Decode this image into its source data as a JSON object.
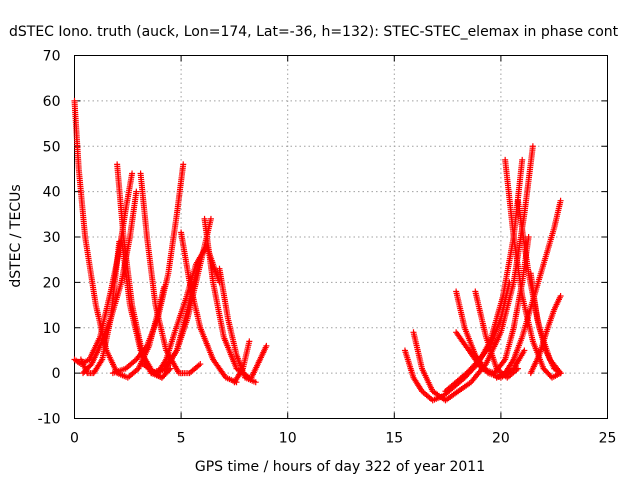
{
  "chart_data": {
    "type": "scatter",
    "title": "dSTEC Iono. truth (auck, Lon=174, Lat=-36, h=132): STEC-STEC_elemax in phase cont",
    "xlabel": "GPS time / hours of day 322 of year 2011",
    "ylabel": "dSTEC  / TECUs",
    "xlim": [
      0,
      25
    ],
    "ylim": [
      -10,
      70
    ],
    "xticks": [
      0,
      5,
      10,
      15,
      20,
      25
    ],
    "yticks": [
      -10,
      0,
      10,
      20,
      30,
      40,
      50,
      60,
      70
    ],
    "grid": true,
    "marker": "+",
    "color": "#ff0000",
    "arcs": [
      {
        "x": [
          0.0,
          0.2,
          0.5,
          1.0,
          1.5,
          2.0,
          2.5,
          3.0,
          3.5,
          4.0,
          4.2
        ],
        "y": [
          60,
          45,
          30,
          15,
          5,
          0,
          -1,
          1,
          6,
          15,
          19
        ]
      },
      {
        "x": [
          0.0,
          0.3,
          0.7,
          1.2,
          1.7,
          2.1,
          2.4,
          2.7
        ],
        "y": [
          3,
          2,
          3,
          8,
          18,
          27,
          36,
          44
        ]
      },
      {
        "x": [
          0.3,
          0.6,
          0.9,
          1.3,
          1.7,
          2.1
        ],
        "y": [
          3,
          0,
          0,
          3,
          12,
          29
        ]
      },
      {
        "x": [
          0.4,
          0.8,
          1.2,
          1.7,
          2.2,
          2.6,
          2.9
        ],
        "y": [
          0,
          2,
          6,
          12,
          20,
          30,
          40
        ]
      },
      {
        "x": [
          2.0,
          2.3,
          2.7,
          3.2,
          3.7,
          4.1
        ],
        "y": [
          46,
          30,
          15,
          4,
          0,
          -1
        ]
      },
      {
        "x": [
          2.2,
          2.6,
          3.1,
          3.6,
          4.1,
          4.5
        ],
        "y": [
          30,
          15,
          5,
          0,
          -1,
          1
        ]
      },
      {
        "x": [
          1.8,
          2.4,
          2.9,
          3.4,
          3.9,
          4.4,
          4.8,
          5.1
        ],
        "y": [
          0,
          1,
          3,
          6,
          12,
          22,
          35,
          46
        ]
      },
      {
        "x": [
          3.1,
          3.4,
          3.8,
          4.3,
          4.9,
          5.4,
          5.9
        ],
        "y": [
          44,
          30,
          15,
          5,
          0,
          0,
          2
        ]
      },
      {
        "x": [
          3.2,
          3.8,
          4.3,
          4.8,
          5.3,
          5.8
        ],
        "y": [
          2,
          0,
          1,
          5,
          14,
          24
        ]
      },
      {
        "x": [
          3.6,
          4.2,
          4.8,
          5.3,
          5.8,
          6.4
        ],
        "y": [
          0,
          1,
          5,
          12,
          22,
          34
        ]
      },
      {
        "x": [
          3.9,
          4.3,
          4.7,
          5.2,
          5.7,
          6.2,
          6.8
        ],
        "y": [
          0,
          3,
          9,
          16,
          24,
          28,
          20
        ]
      },
      {
        "x": [
          5.0,
          5.4,
          5.9,
          6.5,
          7.1,
          7.6
        ],
        "y": [
          31,
          20,
          10,
          3,
          -1,
          -2
        ]
      },
      {
        "x": [
          6.1,
          6.5,
          7.0,
          7.6,
          8.2
        ],
        "y": [
          34,
          20,
          8,
          1,
          -1
        ]
      },
      {
        "x": [
          6.8,
          7.2,
          7.6,
          8.0,
          8.5
        ],
        "y": [
          23,
          12,
          4,
          -1,
          -2
        ]
      },
      {
        "x": [
          7.5,
          7.9,
          8.2
        ],
        "y": [
          -2,
          1,
          7
        ]
      },
      {
        "x": [
          8.3,
          8.6,
          9.0
        ],
        "y": [
          -1,
          2,
          6
        ]
      },
      {
        "x": [
          15.5,
          15.9,
          16.3,
          16.8,
          17.3,
          17.8,
          18.3,
          18.9,
          19.5,
          20.1,
          20.6,
          21.0
        ],
        "y": [
          5,
          -1,
          -4,
          -6,
          -5,
          -3,
          -1,
          2,
          7,
          17,
          30,
          47
        ]
      },
      {
        "x": [
          15.9,
          16.3,
          16.8,
          17.4,
          18.0,
          18.6,
          19.3,
          20.0,
          20.6,
          21.1,
          21.5
        ],
        "y": [
          9,
          1,
          -4,
          -6,
          -4,
          -2,
          2,
          9,
          20,
          35,
          50
        ]
      },
      {
        "x": [
          17.4,
          17.9,
          18.4,
          19.0,
          19.5,
          20.0,
          20.4
        ],
        "y": [
          -4,
          -2,
          0,
          3,
          6,
          12,
          20
        ]
      },
      {
        "x": [
          17.9,
          18.3,
          18.8,
          19.4,
          20.0,
          20.6,
          21.1
        ],
        "y": [
          18,
          10,
          4,
          0,
          -1,
          1,
          5
        ]
      },
      {
        "x": [
          17.9,
          18.5,
          19.1,
          19.7,
          20.2,
          20.6,
          21.0,
          21.3
        ],
        "y": [
          9,
          5,
          1,
          0,
          3,
          10,
          20,
          30
        ]
      },
      {
        "x": [
          18.8,
          19.3,
          19.8,
          20.3,
          20.8
        ],
        "y": [
          18,
          8,
          1,
          -1,
          1
        ]
      },
      {
        "x": [
          19.8,
          20.2,
          20.6,
          21.0,
          21.5,
          22.0,
          22.5,
          22.8
        ],
        "y": [
          -1,
          0,
          3,
          8,
          16,
          24,
          32,
          38
        ]
      },
      {
        "x": [
          20.2,
          20.6,
          21.0,
          21.5,
          22.0,
          22.4,
          22.8
        ],
        "y": [
          47,
          30,
          17,
          7,
          1,
          -1,
          0
        ]
      },
      {
        "x": [
          20.8,
          21.3,
          21.8,
          22.3,
          22.8
        ],
        "y": [
          38,
          22,
          10,
          3,
          0
        ]
      },
      {
        "x": [
          21.4,
          21.8,
          22.2,
          22.5,
          22.8
        ],
        "y": [
          0,
          4,
          10,
          14,
          17
        ]
      },
      {
        "x": [
          21.4,
          21.7,
          22.1,
          22.5,
          22.8
        ],
        "y": [
          22,
          12,
          5,
          1,
          0
        ]
      }
    ]
  }
}
